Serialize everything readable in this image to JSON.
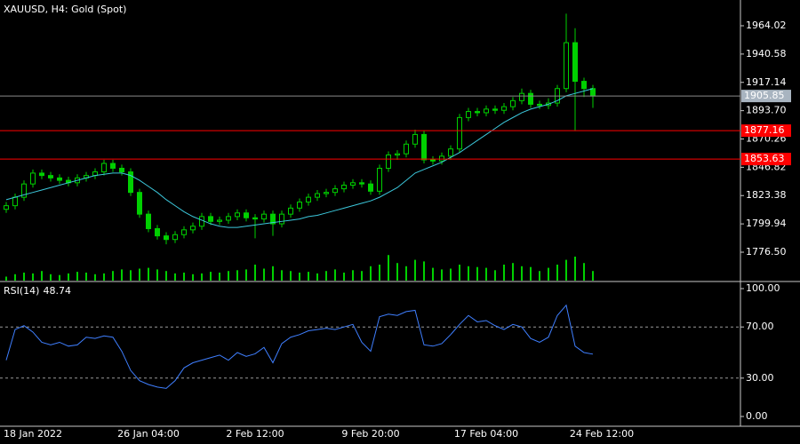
{
  "chart_data": [
    {
      "type": "candlestick",
      "title": "XAUUSD, H4:  Gold (Spot)",
      "categories": [
        null,
        null,
        null,
        "18 Jan 2022",
        null,
        null,
        null,
        null,
        null,
        null,
        null,
        null,
        null,
        null,
        null,
        null,
        "26 Jan 04:00",
        null,
        null,
        null,
        null,
        null,
        null,
        null,
        null,
        null,
        null,
        null,
        "2 Feb 12:00",
        null,
        null,
        null,
        null,
        null,
        null,
        null,
        null,
        null,
        null,
        null,
        null,
        "9 Feb 20:00",
        null,
        null,
        null,
        null,
        null,
        null,
        null,
        null,
        null,
        null,
        null,
        null,
        "17 Feb 04:00",
        null,
        null,
        null,
        null,
        null,
        null,
        null,
        null,
        null,
        null,
        null,
        null,
        "24 Feb 12:00"
      ],
      "open": [
        1812,
        1815,
        1822,
        1833,
        1842,
        1840,
        1838,
        1836,
        1834,
        1838,
        1840,
        1843,
        1850,
        1846,
        1843,
        1826,
        1808,
        1796,
        1790,
        1787,
        1791,
        1795,
        1798,
        1806,
        1802,
        1803,
        1806,
        1809,
        1805,
        1804,
        1808,
        1800,
        1808,
        1813,
        1818,
        1822,
        1825,
        1826,
        1829,
        1832,
        1834,
        1833,
        1827,
        1846,
        1857,
        1858,
        1866,
        1874,
        1853,
        1852,
        1856,
        1862,
        1888,
        1893,
        1892,
        1895,
        1894,
        1897,
        1902,
        1908,
        1899,
        1898,
        1900,
        1912,
        1950,
        1918,
        1912,
        null
      ],
      "high": [
        1818,
        1825,
        1836,
        1845,
        1845,
        1843,
        1841,
        1839,
        1841,
        1843,
        1846,
        1853,
        1853,
        1849,
        1846,
        1829,
        1811,
        1799,
        1793,
        1794,
        1798,
        1801,
        1809,
        1809,
        1806,
        1809,
        1812,
        1812,
        1808,
        1811,
        1811,
        1811,
        1816,
        1821,
        1825,
        1828,
        1829,
        1832,
        1835,
        1837,
        1837,
        1836,
        1849,
        1860,
        1861,
        1869,
        1878,
        1877,
        1856,
        1859,
        1865,
        1891,
        1896,
        1896,
        1898,
        1898,
        1900,
        1905,
        1912,
        1911,
        1902,
        1904,
        1915,
        1974,
        1962,
        1921,
        1915,
        null
      ],
      "low": [
        1809,
        1812,
        1819,
        1830,
        1837,
        1835,
        1833,
        1831,
        1831,
        1835,
        1837,
        1840,
        1843,
        1840,
        1823,
        1805,
        1793,
        1787,
        1783,
        1784,
        1788,
        1792,
        1795,
        1799,
        1799,
        1800,
        1803,
        1802,
        1788,
        1801,
        1790,
        1797,
        1805,
        1810,
        1815,
        1819,
        1822,
        1823,
        1826,
        1829,
        1830,
        1824,
        1824,
        1843,
        1853,
        1855,
        1863,
        1850,
        1849,
        1849,
        1853,
        1859,
        1885,
        1889,
        1889,
        1891,
        1891,
        1894,
        1899,
        1896,
        1895,
        1895,
        1897,
        1909,
        1877,
        1905,
        1896,
        null
      ],
      "close": [
        1815,
        1822,
        1833,
        1842,
        1840,
        1838,
        1836,
        1834,
        1838,
        1840,
        1843,
        1850,
        1846,
        1843,
        1826,
        1808,
        1796,
        1790,
        1787,
        1791,
        1795,
        1798,
        1806,
        1802,
        1803,
        1806,
        1809,
        1805,
        1804,
        1808,
        1800,
        1808,
        1813,
        1818,
        1822,
        1825,
        1826,
        1829,
        1832,
        1834,
        1833,
        1827,
        1846,
        1857,
        1858,
        1866,
        1874,
        1853,
        1852,
        1856,
        1862,
        1888,
        1893,
        1892,
        1895,
        1894,
        1897,
        1902,
        1908,
        1899,
        1898,
        1900,
        1912,
        1950,
        1918,
        1912,
        1905.85,
        null
      ],
      "color": "#00d000",
      "ma_values": [
        1820,
        1822,
        1824,
        1826,
        1828,
        1830,
        1832,
        1834,
        1836,
        1838,
        1840,
        1841,
        1842,
        1842,
        1840,
        1836,
        1831,
        1826,
        1820,
        1815,
        1810,
        1806,
        1803,
        1800,
        1798,
        1797,
        1797,
        1798,
        1799,
        1800,
        1801,
        1802,
        1803,
        1804,
        1806,
        1807,
        1809,
        1811,
        1813,
        1815,
        1817,
        1819,
        1822,
        1826,
        1830,
        1836,
        1842,
        1845,
        1848,
        1851,
        1855,
        1859,
        1864,
        1869,
        1874,
        1879,
        1884,
        1888,
        1892,
        1895,
        1897,
        1899,
        1902,
        1906,
        1908,
        1910,
        1912,
        null
      ],
      "ma_color": "#3cc8dc",
      "volume": [
        5,
        8,
        10,
        9,
        12,
        8,
        7,
        9,
        11,
        10,
        8,
        9,
        12,
        14,
        13,
        15,
        16,
        14,
        12,
        9,
        10,
        8,
        9,
        11,
        10,
        12,
        13,
        14,
        20,
        15,
        18,
        13,
        12,
        10,
        11,
        9,
        12,
        14,
        10,
        13,
        12,
        18,
        20,
        32,
        22,
        18,
        26,
        24,
        16,
        14,
        15,
        20,
        18,
        17,
        16,
        13,
        20,
        22,
        18,
        17,
        12,
        16,
        20,
        26,
        30,
        22,
        12,
        null
      ],
      "ylim": [
        1752.96,
        1985.35
      ],
      "yticks": [
        1964.02,
        1940.58,
        1917.14,
        {
          "value": 1893.7,
          "label": "1893.70"
        },
        1870.26,
        1846.82,
        1823.38,
        1799.94,
        {
          "value": 1776.5,
          "label": "1776.50"
        }
      ],
      "levels": [
        1877.16,
        1853.63
      ],
      "level_color": "#ff0000",
      "price_line_color": "#8a8a8a"
    },
    {
      "type": "line",
      "name": "RSI(14)",
      "values": [
        44,
        68,
        71,
        66,
        58,
        56,
        58,
        55,
        56,
        62,
        61,
        63,
        62,
        51,
        36,
        28,
        25,
        23,
        22,
        28,
        38,
        42,
        44,
        46,
        48,
        44,
        50,
        47,
        49,
        54,
        42,
        57,
        62,
        64,
        67,
        68,
        69,
        68,
        70,
        72,
        58,
        51,
        78,
        80,
        79,
        82,
        83,
        56,
        55,
        57,
        64,
        72,
        79,
        74,
        75,
        71,
        68,
        72,
        70,
        61,
        58,
        62,
        79,
        87,
        55,
        50,
        48.74,
        null
      ],
      "color": "#3f7fff",
      "ylim": [
        -7.64,
        104.86
      ],
      "yticks": [
        {
          "value": 100,
          "label": "100.00"
        },
        {
          "value": 70,
          "label": "70.00"
        },
        {
          "value": 30,
          "label": "30.00"
        },
        {
          "value": 0,
          "label": "0.00"
        }
      ],
      "levels": [
        70,
        30
      ]
    }
  ]
}
